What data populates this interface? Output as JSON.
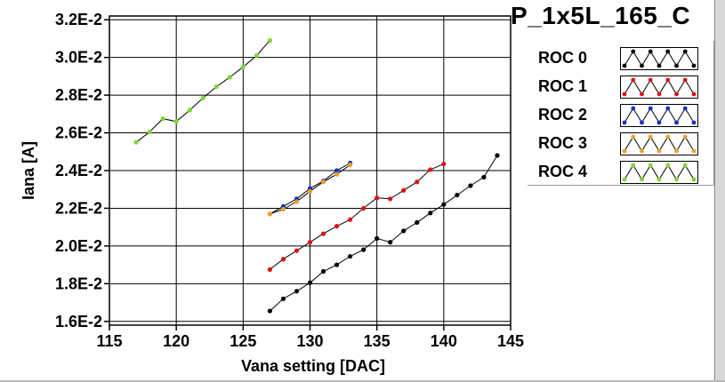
{
  "chart_data": {
    "type": "scatter",
    "title": "P_1x5L_165_C",
    "xlabel": "Vana setting [DAC]",
    "ylabel": "Iana [A]",
    "xlim": [
      115,
      145
    ],
    "ylim": [
      0.0158,
      0.0322
    ],
    "xticks": [
      115,
      120,
      125,
      130,
      135,
      140,
      145
    ],
    "xtick_labels": [
      "115",
      "120",
      "125",
      "130",
      "135",
      "140",
      "145"
    ],
    "yticks": [
      0.016,
      0.018,
      0.02,
      0.022,
      0.024,
      0.026,
      0.028,
      0.03,
      0.032
    ],
    "ytick_labels": [
      "1.6E-2",
      "1.8E-2",
      "2.0E-2",
      "2.2E-2",
      "2.4E-2",
      "2.6E-2",
      "2.8E-2",
      "3.0E-2",
      "3.2E-2"
    ],
    "grid": true,
    "legend_position": "right",
    "series": [
      {
        "name": "ROC 0",
        "color": "#000000",
        "x": [
          127,
          128,
          129,
          130,
          131,
          132,
          133,
          134,
          135,
          136,
          137,
          138,
          139,
          140,
          141,
          142,
          143,
          144
        ],
        "y": [
          0.01655,
          0.0172,
          0.0176,
          0.01805,
          0.01865,
          0.019,
          0.01945,
          0.0198,
          0.0204,
          0.0202,
          0.0208,
          0.02125,
          0.02175,
          0.0222,
          0.0227,
          0.0232,
          0.02365,
          0.0248
        ]
      },
      {
        "name": "ROC 1",
        "color": "#e01010",
        "x": [
          127,
          128,
          129,
          130,
          131,
          132,
          133,
          134,
          135,
          136,
          137,
          138,
          139,
          140
        ],
        "y": [
          0.01875,
          0.0193,
          0.01975,
          0.0202,
          0.02065,
          0.02105,
          0.0214,
          0.022,
          0.02255,
          0.0225,
          0.02295,
          0.0234,
          0.02405,
          0.02435
        ]
      },
      {
        "name": "ROC 2",
        "color": "#1030c8",
        "x": [
          127,
          128,
          129,
          130,
          131,
          132,
          133
        ],
        "y": [
          0.0217,
          0.0221,
          0.0225,
          0.02305,
          0.02345,
          0.024,
          0.0244
        ]
      },
      {
        "name": "ROC 3",
        "color": "#f0a020",
        "x": [
          127,
          128,
          129,
          130,
          131,
          132,
          133
        ],
        "y": [
          0.0217,
          0.02195,
          0.02235,
          0.0229,
          0.0234,
          0.0238,
          0.0243
        ]
      },
      {
        "name": "ROC 4",
        "color": "#7cd830",
        "x": [
          117,
          118,
          119,
          120,
          121,
          122,
          123,
          124,
          125,
          126,
          127
        ],
        "y": [
          0.0255,
          0.02605,
          0.02675,
          0.0266,
          0.0272,
          0.02785,
          0.02845,
          0.02895,
          0.0295,
          0.0301,
          0.0309
        ]
      }
    ]
  }
}
